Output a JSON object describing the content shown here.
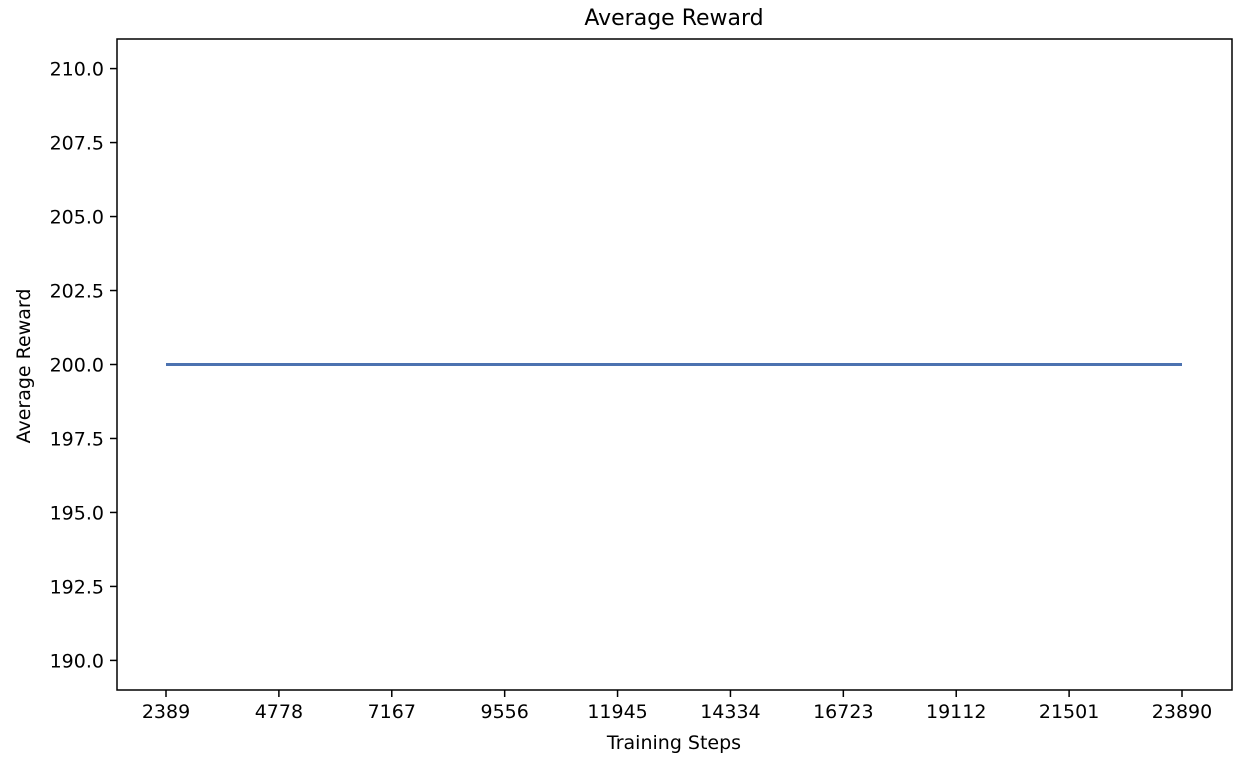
{
  "chart_data": {
    "type": "line",
    "title": "Average Reward",
    "xlabel": "Training Steps",
    "ylabel": "Average Reward",
    "x": [
      2389,
      4778,
      7167,
      9556,
      11945,
      14334,
      16723,
      19112,
      21501,
      23890
    ],
    "series": [
      {
        "values": [
          200.0,
          200.0,
          200.0,
          200.0,
          200.0,
          200.0,
          200.0,
          200.0,
          200.0,
          200.0
        ],
        "color": "#4c72b0"
      }
    ],
    "x_ticks": [
      "2389",
      "4778",
      "7167",
      "9556",
      "11945",
      "14334",
      "16723",
      "19112",
      "21501",
      "23890"
    ],
    "y_ticks": [
      "190.0",
      "192.5",
      "195.0",
      "197.5",
      "200.0",
      "202.5",
      "205.0",
      "207.5",
      "210.0"
    ],
    "ylim": [
      189,
      211
    ],
    "grid": false,
    "legend": "none"
  }
}
